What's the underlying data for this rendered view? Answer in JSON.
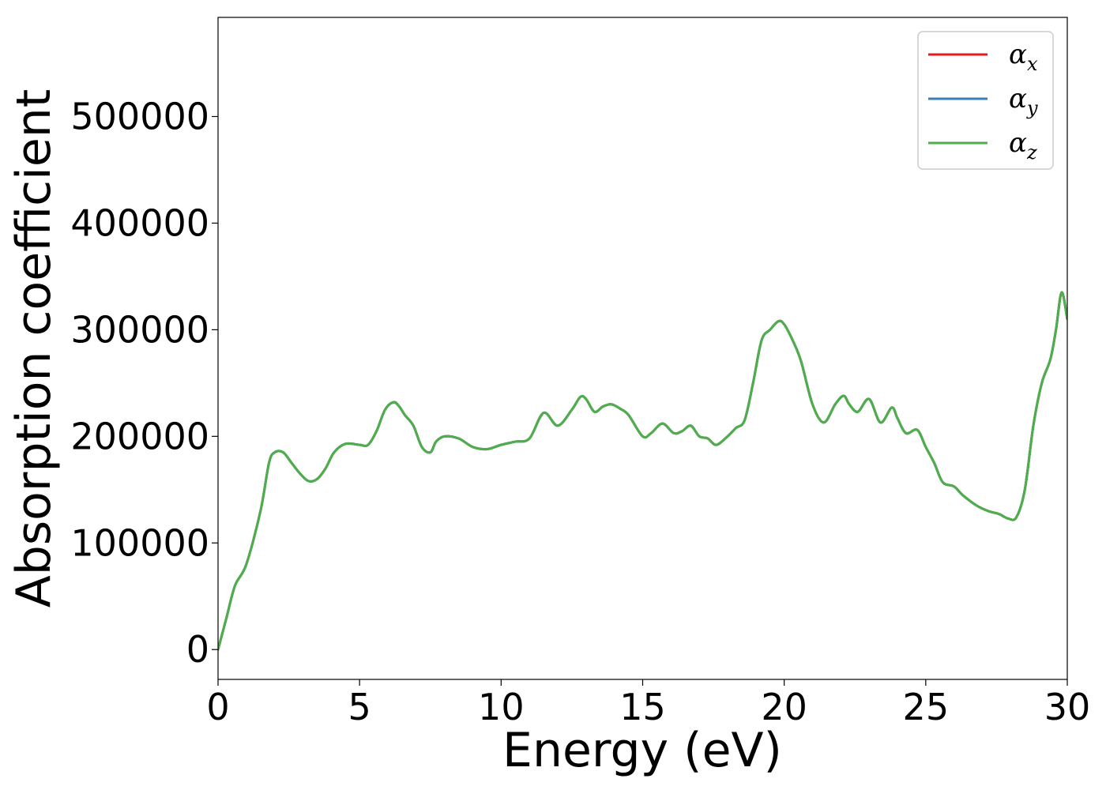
{
  "chart_data": {
    "type": "line",
    "xlabel": "Energy (eV)",
    "ylabel": "Absorption coefficient",
    "xlim": [
      0,
      30
    ],
    "ylim": [
      -28000,
      593000
    ],
    "xticks": [
      0,
      5,
      10,
      15,
      20,
      25,
      30
    ],
    "xtick_labels": [
      "0",
      "5",
      "10",
      "15",
      "20",
      "25",
      "30"
    ],
    "yticks": [
      0,
      100000,
      200000,
      300000,
      400000,
      500000
    ],
    "ytick_labels": [
      "0",
      "100000",
      "200000",
      "300000",
      "400000",
      "500000"
    ],
    "grid": false,
    "legend_position": "top-right",
    "legend": [
      {
        "base": "α",
        "sub": "x",
        "color": "#e41a1c"
      },
      {
        "base": "α",
        "sub": "y",
        "color": "#377eb8"
      },
      {
        "base": "α",
        "sub": "z",
        "color": "#4daf4a"
      }
    ],
    "x": [
      0,
      0.3,
      0.6,
      1.0,
      1.5,
      1.8,
      2.0,
      2.3,
      2.6,
      2.9,
      3.2,
      3.5,
      3.8,
      4.1,
      4.5,
      5.0,
      5.3,
      5.6,
      5.9,
      6.2,
      6.4,
      6.6,
      6.9,
      7.2,
      7.5,
      7.7,
      8.0,
      8.5,
      9.0,
      9.5,
      10.0,
      10.5,
      11.0,
      11.5,
      12.0,
      12.5,
      12.8,
      13.0,
      13.3,
      13.6,
      13.9,
      14.2,
      14.5,
      15.0,
      15.3,
      15.7,
      16.1,
      16.4,
      16.7,
      17.0,
      17.3,
      17.6,
      18.0,
      18.3,
      18.6,
      18.9,
      19.2,
      19.5,
      19.8,
      20.0,
      20.3,
      20.6,
      21.0,
      21.4,
      21.8,
      22.1,
      22.3,
      22.6,
      23.0,
      23.4,
      23.8,
      24.0,
      24.3,
      24.7,
      25.0,
      25.3,
      25.6,
      26.0,
      26.3,
      26.8,
      27.2,
      27.6,
      27.9,
      28.2,
      28.5,
      28.8,
      29.1,
      29.4,
      29.6,
      29.8,
      30.0
    ],
    "series": [
      {
        "name": "α_x",
        "color": "#e41a1c",
        "values": [
          0,
          30000,
          60000,
          80000,
          130000,
          175000,
          185000,
          185000,
          175000,
          165000,
          158000,
          160000,
          170000,
          185000,
          193000,
          192000,
          192000,
          205000,
          225000,
          232000,
          228000,
          220000,
          210000,
          190000,
          185000,
          195000,
          200000,
          198000,
          190000,
          188000,
          192000,
          195000,
          198000,
          222000,
          210000,
          225000,
          237000,
          235000,
          223000,
          228000,
          230000,
          226000,
          220000,
          200000,
          203000,
          212000,
          203000,
          205000,
          210000,
          200000,
          198000,
          192000,
          200000,
          208000,
          215000,
          250000,
          290000,
          300000,
          308000,
          305000,
          290000,
          270000,
          230000,
          213000,
          230000,
          238000,
          230000,
          223000,
          235000,
          213000,
          227000,
          217000,
          203000,
          206000,
          190000,
          175000,
          157000,
          153000,
          145000,
          135000,
          130000,
          127000,
          123000,
          124000,
          150000,
          210000,
          250000,
          272000,
          300000,
          335000,
          310000
        ]
      },
      {
        "name": "α_y",
        "color": "#377eb8",
        "values": [
          0,
          30000,
          60000,
          80000,
          130000,
          175000,
          185000,
          185000,
          175000,
          165000,
          158000,
          160000,
          170000,
          185000,
          193000,
          192000,
          192000,
          205000,
          225000,
          232000,
          228000,
          220000,
          210000,
          190000,
          185000,
          195000,
          200000,
          198000,
          190000,
          188000,
          192000,
          195000,
          198000,
          222000,
          210000,
          225000,
          237000,
          235000,
          223000,
          228000,
          230000,
          226000,
          220000,
          200000,
          203000,
          212000,
          203000,
          205000,
          210000,
          200000,
          198000,
          192000,
          200000,
          208000,
          215000,
          250000,
          290000,
          300000,
          308000,
          305000,
          290000,
          270000,
          230000,
          213000,
          230000,
          238000,
          230000,
          223000,
          235000,
          213000,
          227000,
          217000,
          203000,
          206000,
          190000,
          175000,
          157000,
          153000,
          145000,
          135000,
          130000,
          127000,
          123000,
          124000,
          150000,
          210000,
          250000,
          272000,
          300000,
          335000,
          310000
        ]
      },
      {
        "name": "α_z",
        "color": "#4daf4a",
        "values": [
          0,
          30000,
          60000,
          80000,
          130000,
          175000,
          185000,
          185000,
          175000,
          165000,
          158000,
          160000,
          170000,
          185000,
          193000,
          192000,
          192000,
          205000,
          225000,
          232000,
          228000,
          220000,
          210000,
          190000,
          185000,
          195000,
          200000,
          198000,
          190000,
          188000,
          192000,
          195000,
          198000,
          222000,
          210000,
          225000,
          237000,
          235000,
          223000,
          228000,
          230000,
          226000,
          220000,
          200000,
          203000,
          212000,
          203000,
          205000,
          210000,
          200000,
          198000,
          192000,
          200000,
          208000,
          215000,
          250000,
          290000,
          300000,
          308000,
          305000,
          290000,
          270000,
          230000,
          213000,
          230000,
          238000,
          230000,
          223000,
          235000,
          213000,
          227000,
          217000,
          203000,
          206000,
          190000,
          175000,
          157000,
          153000,
          145000,
          135000,
          130000,
          127000,
          123000,
          124000,
          150000,
          210000,
          250000,
          272000,
          300000,
          335000,
          310000
        ]
      }
    ]
  }
}
